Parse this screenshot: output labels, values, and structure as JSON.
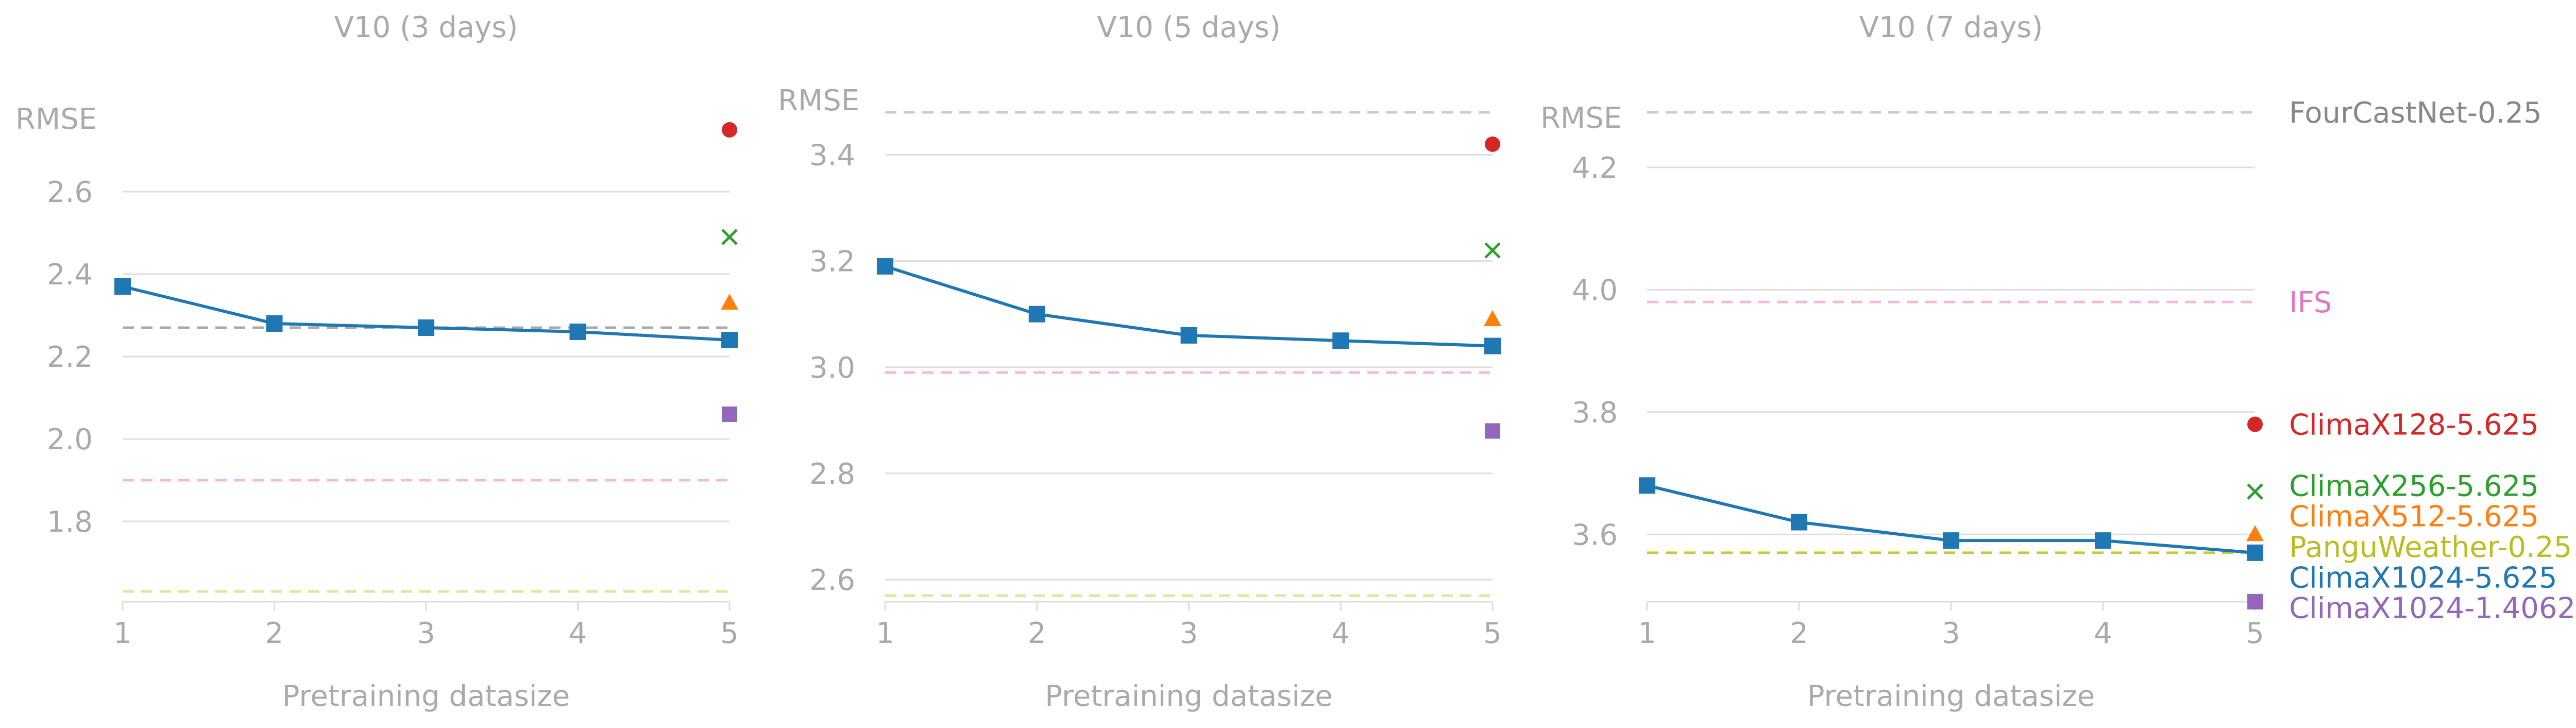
{
  "colors": {
    "tick_text": "#aaaaaa",
    "grid": "#dddddd",
    "curve": "#1f77b4"
  },
  "chart_data": [
    {
      "type": "line",
      "title": "V10 (3 days)",
      "xlabel": "Pretraining datasize",
      "ylabel": "RMSE",
      "x": [
        1,
        2,
        3,
        4,
        5
      ],
      "ylim": [
        1.62,
        2.78
      ],
      "yticks": [
        "1.8",
        "2.0",
        "2.2",
        "2.4",
        "2.6"
      ],
      "ytick_values": [
        1.8,
        2.0,
        2.2,
        2.4,
        2.6
      ],
      "grid": "horizontal",
      "series": [
        {
          "name": "ClimaX1024-5.625",
          "values": [
            2.37,
            2.28,
            2.27,
            2.26,
            2.24
          ],
          "color": "#1f77b4",
          "marker": "square"
        }
      ],
      "points": [
        {
          "name": "ClimaX128-5.625",
          "value": 2.75,
          "color": "#d62728",
          "marker": "circle"
        },
        {
          "name": "ClimaX256-5.625",
          "value": 2.49,
          "color": "#2ca02c",
          "marker": "x"
        },
        {
          "name": "ClimaX512-5.625",
          "value": 2.33,
          "color": "#ff7f0e",
          "marker": "triangle"
        },
        {
          "name": "ClimaX1024-1.40625",
          "value": 2.06,
          "color": "#9467bd",
          "marker": "square"
        }
      ],
      "baselines": [
        {
          "name": "FourCastNet-0.25",
          "value": 2.27,
          "color": "#aaaaaa"
        },
        {
          "name": "IFS",
          "value": 1.9,
          "color": "#f5b8dd"
        },
        {
          "name": "PanguWeather-0.25",
          "value": 1.63,
          "color": "#e3e39a"
        }
      ]
    },
    {
      "type": "line",
      "title": "V10 (5 days)",
      "xlabel": "Pretraining datasize",
      "ylabel": "RMSE",
      "x": [
        1,
        2,
        3,
        4,
        5
      ],
      "ylim": [
        2.57,
        3.48
      ],
      "yticks": [
        "2.6",
        "2.8",
        "3.0",
        "3.2",
        "3.4"
      ],
      "ytick_values": [
        2.6,
        2.8,
        3.0,
        3.2,
        3.4
      ],
      "grid": "horizontal",
      "series": [
        {
          "name": "ClimaX1024-5.625",
          "values": [
            3.19,
            3.1,
            3.06,
            3.05,
            3.04
          ],
          "color": "#1f77b4",
          "marker": "square"
        }
      ],
      "points": [
        {
          "name": "ClimaX128-5.625",
          "value": 3.42,
          "color": "#d62728",
          "marker": "circle"
        },
        {
          "name": "ClimaX256-5.625",
          "value": 3.22,
          "color": "#2ca02c",
          "marker": "x"
        },
        {
          "name": "ClimaX512-5.625",
          "value": 3.09,
          "color": "#ff7f0e",
          "marker": "triangle"
        },
        {
          "name": "ClimaX1024-1.40625",
          "value": 2.88,
          "color": "#9467bd",
          "marker": "square"
        }
      ],
      "baselines": [
        {
          "name": "FourCastNet-0.25",
          "value": 3.48,
          "color": "#cccccc"
        },
        {
          "name": "IFS",
          "value": 2.99,
          "color": "#f5b8dd"
        },
        {
          "name": "PanguWeather-0.25",
          "value": 2.57,
          "color": "#e3e39a"
        }
      ]
    },
    {
      "type": "line",
      "title": "V10 (7 days)",
      "xlabel": "Pretraining datasize",
      "ylabel": "RMSE",
      "x": [
        1,
        2,
        3,
        4,
        5
      ],
      "ylim": [
        3.5,
        4.29
      ],
      "yticks": [
        "3.6",
        "3.8",
        "4.0",
        "4.2"
      ],
      "ytick_values": [
        3.6,
        3.8,
        4.0,
        4.2
      ],
      "grid": "horizontal",
      "series": [
        {
          "name": "ClimaX1024-5.625",
          "values": [
            3.68,
            3.62,
            3.59,
            3.59,
            3.57
          ],
          "color": "#1f77b4",
          "marker": "square"
        }
      ],
      "points": [
        {
          "name": "ClimaX128-5.625",
          "value": 3.78,
          "color": "#d62728",
          "marker": "circle"
        },
        {
          "name": "ClimaX256-5.625",
          "value": 3.67,
          "color": "#2ca02c",
          "marker": "x"
        },
        {
          "name": "ClimaX512-5.625",
          "value": 3.6,
          "color": "#ff7f0e",
          "marker": "triangle"
        },
        {
          "name": "ClimaX1024-1.40625",
          "value": 3.49,
          "color": "#9467bd",
          "marker": "square"
        }
      ],
      "baselines": [
        {
          "name": "FourCastNet-0.25",
          "value": 4.29,
          "color": "#cccccc"
        },
        {
          "name": "IFS",
          "value": 3.98,
          "color": "#f5b8dd"
        },
        {
          "name": "PanguWeather-0.25",
          "value": 3.57,
          "color": "#c9c93a"
        }
      ]
    }
  ],
  "legend": {
    "placement": "right",
    "items": [
      {
        "label": "FourCastNet-0.25",
        "value": 4.29,
        "color": "#888888"
      },
      {
        "label": "IFS",
        "value": 3.98,
        "color": "#e377c2"
      },
      {
        "label": "ClimaX128-5.625",
        "value": 3.78,
        "color": "#d62728"
      },
      {
        "label": "ClimaX256-5.625",
        "value": 3.68,
        "color": "#2ca02c"
      },
      {
        "label": "ClimaX512-5.625",
        "value": 3.63,
        "color": "#ff7f0e"
      },
      {
        "label": "PanguWeather-0.25",
        "value": 3.58,
        "color": "#bcbd22"
      },
      {
        "label": "ClimaX1024-5.625",
        "value": 3.53,
        "color": "#1f77b4"
      },
      {
        "label": "ClimaX1024-1.40625",
        "value": 3.48,
        "color": "#9467bd"
      }
    ]
  }
}
